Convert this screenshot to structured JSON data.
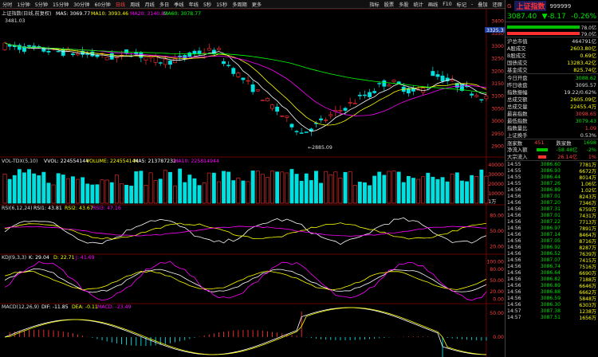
{
  "toolbar": {
    "items": [
      "分时",
      "1分钟",
      "5分钟",
      "15分钟",
      "30分钟",
      "60分钟",
      "日线",
      "周线",
      "月线",
      "多日",
      "季线",
      "年线",
      "5秒",
      "15秒",
      "多周期",
      "更多"
    ],
    "active_index": 6,
    "right_items": [
      "指标",
      "股票",
      "多股",
      "统计",
      "画线",
      "F10",
      "标记",
      "-",
      "叠加",
      "还原"
    ]
  },
  "main_chart": {
    "title": "上证指数(日线,前复权)",
    "ma5": "MA5: 3069.77",
    "ma10": "MA10: 3093.46",
    "ma20": "MA20: 3140.82",
    "ma60": "MA60: 3078.77",
    "high_label": "3481.03",
    "low_label": "2885.09",
    "price_tag": "3325.3",
    "y_ticks": [
      "3400",
      "3350",
      "3300",
      "3250",
      "3200",
      "3150",
      "3100",
      "3050",
      "3000",
      "2950",
      "2900"
    ]
  },
  "vol_chart": {
    "title": "VOL-TDX(5,10)",
    "vvol": "VVOL: 224554144",
    "volume": "VOLUME: 224554144",
    "ma5": "MA5: 213787232",
    "ma10": "MA10: 225814944",
    "y_ticks": [
      "40000",
      "30000",
      "20000",
      "10000"
    ],
    "unit": "X1万"
  },
  "rsi_chart": {
    "title": "RSI(6,12,24)",
    "rsi1": "RSI1: 43.81",
    "rsi2": "RSI2: 43.67",
    "rsi3": "RSI3: 47.16",
    "y_ticks": [
      "80.00",
      "50.00",
      "20.00"
    ]
  },
  "kdj_chart": {
    "title": "KDJ(9,3,3)",
    "k": "K: 29.04",
    "d": "D: 22.71",
    "j": "J: 41.69",
    "y_ticks": [
      "100.00",
      "80.00",
      "50.00",
      "20.00",
      "0.00"
    ]
  },
  "macd_chart": {
    "title": "MACD(12,26,9)",
    "dif": "DIF: -11.85",
    "dea": "DEA: -0.11",
    "macd": "MACD: -23.49",
    "y_ticks": [
      "50.00",
      "0.00"
    ]
  },
  "quote": {
    "marker": "G",
    "name": "上证指数",
    "code": "999999",
    "price": "3087.40",
    "change": "▼-8.17",
    "change_pct": "-0.26%",
    "ratio_up": "78.0亿",
    "ratio_dn": "79.0亿",
    "fields": [
      {
        "k": "沪总市值",
        "v": "464791亿",
        "c": "wh"
      },
      {
        "k": "A股成交",
        "v": "2603.80亿",
        "c": "yl"
      },
      {
        "k": "B股成交",
        "v": "0.69亿",
        "c": "yl"
      },
      {
        "k": "国债成交",
        "v": "13283.42亿",
        "c": "yl"
      },
      {
        "k": "基金成交",
        "v": "825.74亿",
        "c": "yl"
      }
    ],
    "fields2": [
      {
        "k": "今日开盘",
        "v": "3088.62",
        "c": "dn"
      },
      {
        "k": "昨日收盘",
        "v": "3095.57",
        "c": "wh"
      },
      {
        "k": "指数振幅",
        "v": "19.22/0.62%",
        "c": "wh"
      },
      {
        "k": "总成交额",
        "v": "2605.09亿",
        "c": "yl"
      },
      {
        "k": "总成交量",
        "v": "22455.4万",
        "c": "yl"
      },
      {
        "k": "最高指数",
        "v": "3098.65",
        "c": "up"
      },
      {
        "k": "最低指数",
        "v": "3079.43",
        "c": "dn"
      },
      {
        "k": "指数量比",
        "v": "1.09",
        "c": "up"
      },
      {
        "k": "上证换手",
        "v": "0.53%",
        "c": "wh"
      }
    ],
    "rise_label": "涨家数",
    "rise": "451",
    "fall_label": "跌家数",
    "fall": "1698",
    "flow1_label": "净流入额",
    "flow1": "-58.48亿",
    "flow1_pct": "-2%",
    "flow2_label": "大宗流入",
    "flow2": "26.14亿",
    "flow2_pct": "1%"
  },
  "ticks": [
    [
      "14:55",
      "3086.60",
      "7781万"
    ],
    [
      "14:55",
      "3086.93",
      "6672万"
    ],
    [
      "14:55",
      "3086.44",
      "8014万"
    ],
    [
      "14:55",
      "3087.26",
      "1.06亿"
    ],
    [
      "14:56",
      "3086.89",
      "1.02亿"
    ],
    [
      "14:56",
      "3087.01",
      "8243万"
    ],
    [
      "14:56",
      "3087.20",
      "7346万"
    ],
    [
      "14:56",
      "3087.31",
      "6759万"
    ],
    [
      "14:56",
      "3087.01",
      "7431万"
    ],
    [
      "14:56",
      "3087.22",
      "7713万"
    ],
    [
      "14:56",
      "3086.97",
      "7891万"
    ],
    [
      "14:56",
      "3087.14",
      "8464万"
    ],
    [
      "14:56",
      "3087.05",
      "8716万"
    ],
    [
      "14:56",
      "3086.92",
      "8287万"
    ],
    [
      "14:56",
      "3086.52",
      "7639万"
    ],
    [
      "14:56",
      "3087.07",
      "7415万"
    ],
    [
      "14:56",
      "3086.74",
      "7516万"
    ],
    [
      "14:56",
      "3086.64",
      "6690万"
    ],
    [
      "14:56",
      "3086.82",
      "7188万"
    ],
    [
      "14:56",
      "3086.89",
      "6646万"
    ],
    [
      "14:56",
      "3086.88",
      "6662万"
    ],
    [
      "14:56",
      "3086.59",
      "5848万"
    ],
    [
      "14:56",
      "3086.30",
      "6303万"
    ],
    [
      "14:57",
      "3087.38",
      "1238万"
    ],
    [
      "14:57",
      "3087.51",
      "1656万"
    ]
  ]
}
